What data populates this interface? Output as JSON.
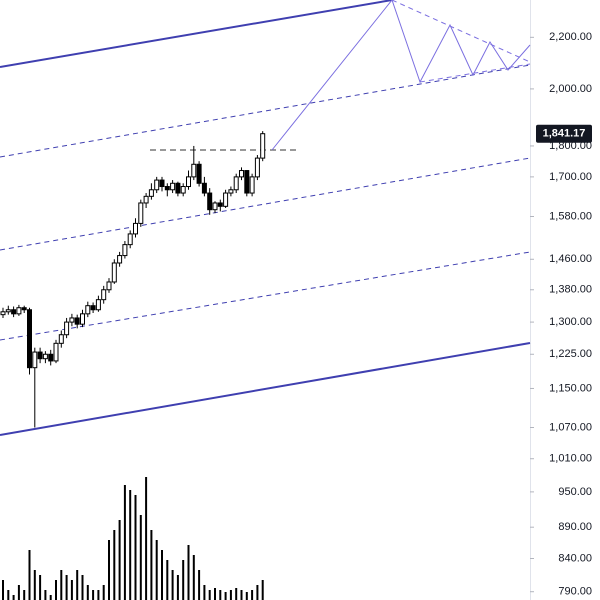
{
  "chart_data": {
    "type": "candlestick",
    "log_scale": true,
    "color": "#000000",
    "ylim": [
      778,
      2357
    ],
    "yticks": [
      {
        "value": 2200,
        "label": "2,200.00"
      },
      {
        "value": 2000,
        "label": "2,000.00"
      },
      {
        "value": 1800,
        "label": "1,800.00"
      },
      {
        "value": 1700,
        "label": "1,700.00"
      },
      {
        "value": 1580,
        "label": "1,580.00"
      },
      {
        "value": 1460,
        "label": "1,460.00"
      },
      {
        "value": 1380,
        "label": "1,380.00"
      },
      {
        "value": 1300,
        "label": "1,300.00"
      },
      {
        "value": 1225,
        "label": "1,225.00"
      },
      {
        "value": 1150,
        "label": "1,150.00"
      },
      {
        "value": 1070,
        "label": "1,070.00"
      },
      {
        "value": 1010,
        "label": "1,010.00"
      },
      {
        "value": 950,
        "label": "950.00"
      },
      {
        "value": 890,
        "label": "890.00"
      },
      {
        "value": 840,
        "label": "840.00"
      },
      {
        "value": 790,
        "label": "790.00"
      }
    ],
    "last_price": {
      "value": 1841.17,
      "label": "1,841.17"
    },
    "open": [
      1318,
      1325,
      1330,
      1320,
      1335,
      1330,
      1195,
      1230,
      1215,
      1225,
      1210,
      1250,
      1270,
      1300,
      1310,
      1295,
      1320,
      1340,
      1330,
      1355,
      1380,
      1400,
      1450,
      1470,
      1500,
      1530,
      1560,
      1620,
      1640,
      1660,
      1690,
      1670,
      1660,
      1680,
      1650,
      1670,
      1700,
      1740,
      1680,
      1650,
      1600,
      1620,
      1610,
      1650,
      1660,
      1700,
      1720,
      1650,
      1700,
      1760
    ],
    "high": [
      1335,
      1340,
      1338,
      1342,
      1340,
      1335,
      1240,
      1240,
      1232,
      1235,
      1258,
      1280,
      1310,
      1320,
      1318,
      1330,
      1350,
      1348,
      1365,
      1390,
      1410,
      1460,
      1480,
      1510,
      1540,
      1575,
      1630,
      1650,
      1680,
      1700,
      1700,
      1680,
      1690,
      1685,
      1680,
      1720,
      1800,
      1750,
      1700,
      1665,
      1625,
      1630,
      1660,
      1670,
      1710,
      1730,
      1720,
      1710,
      1770,
      1850
    ],
    "low": [
      1310,
      1318,
      1312,
      1315,
      1322,
      1180,
      1070,
      1205,
      1205,
      1200,
      1205,
      1240,
      1262,
      1290,
      1285,
      1288,
      1312,
      1322,
      1325,
      1345,
      1372,
      1395,
      1440,
      1462,
      1490,
      1520,
      1550,
      1605,
      1630,
      1650,
      1655,
      1640,
      1650,
      1640,
      1640,
      1660,
      1690,
      1670,
      1640,
      1585,
      1590,
      1595,
      1605,
      1640,
      1650,
      1690,
      1640,
      1640,
      1690,
      1750
    ],
    "close": [
      1325,
      1330,
      1320,
      1335,
      1330,
      1195,
      1230,
      1215,
      1225,
      1210,
      1250,
      1270,
      1300,
      1310,
      1295,
      1320,
      1340,
      1330,
      1355,
      1380,
      1400,
      1450,
      1470,
      1500,
      1530,
      1560,
      1620,
      1640,
      1660,
      1690,
      1670,
      1660,
      1680,
      1650,
      1670,
      1700,
      1740,
      1680,
      1650,
      1600,
      1620,
      1610,
      1650,
      1660,
      1700,
      1720,
      1650,
      1700,
      1760,
      1841.17
    ],
    "volume": [
      20,
      10,
      5,
      15,
      10,
      50,
      30,
      25,
      10,
      5,
      20,
      30,
      25,
      20,
      30,
      25,
      15,
      10,
      10,
      15,
      60,
      70,
      80,
      115,
      110,
      105,
      85,
      123,
      70,
      60,
      50,
      40,
      30,
      25,
      40,
      55,
      45,
      30,
      15,
      10,
      12,
      10,
      8,
      10,
      12,
      10,
      8,
      10,
      15,
      20
    ]
  }
}
